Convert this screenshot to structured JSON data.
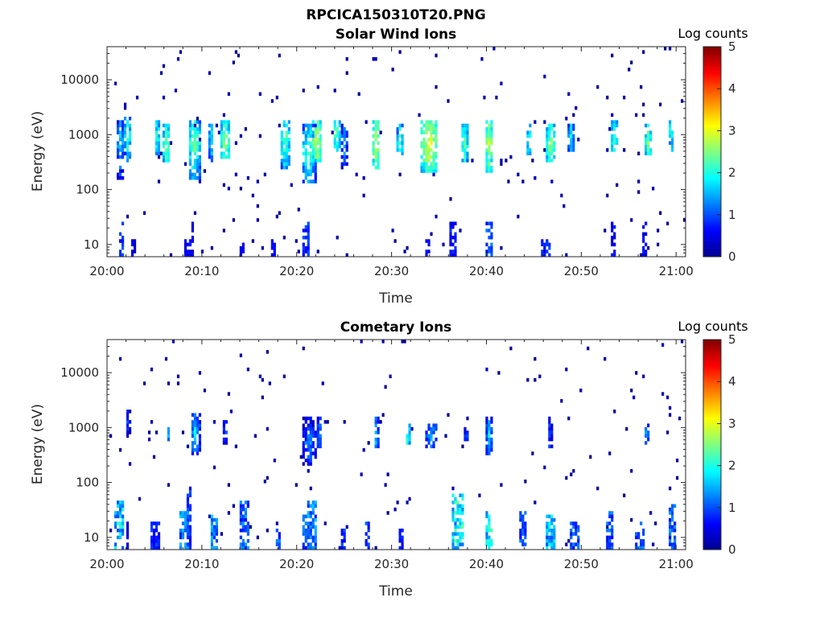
{
  "figure": {
    "title": "RPCICA150310T20.PNG"
  },
  "colormap": {
    "name": "jet",
    "stops": [
      "#00008f",
      "#0000ff",
      "#0080ff",
      "#00ffff",
      "#80ff80",
      "#ffff00",
      "#ff8000",
      "#ff0000",
      "#800000"
    ]
  },
  "chart_data": [
    {
      "type": "heatmap",
      "title": "Solar Wind Ions",
      "xlabel": "Time",
      "ylabel": "Energy (eV)",
      "y_scale": "log",
      "ylim": [
        6,
        40000
      ],
      "xlim_minutes": [
        0,
        61
      ],
      "x_ticks": [
        {
          "minute": 0,
          "label": "20:00"
        },
        {
          "minute": 10,
          "label": "20:10"
        },
        {
          "minute": 20,
          "label": "20:20"
        },
        {
          "minute": 30,
          "label": "20:30"
        },
        {
          "minute": 40,
          "label": "20:40"
        },
        {
          "minute": 50,
          "label": "20:50"
        },
        {
          "minute": 60,
          "label": "21:00"
        }
      ],
      "y_ticks": [
        {
          "value": 10,
          "label": "10"
        },
        {
          "value": 100,
          "label": "100"
        },
        {
          "value": 1000,
          "label": "1000"
        },
        {
          "value": 10000,
          "label": "10000"
        }
      ],
      "colorbar": {
        "label": "Log counts",
        "range": [
          0,
          5
        ],
        "ticks": [
          "0",
          "1",
          "2",
          "3",
          "4",
          "5"
        ]
      },
      "seed": 17,
      "scatter_density": 0.012,
      "bursts": [
        {
          "t": 1.4,
          "e": 700,
          "w": 0.4,
          "lo": 150,
          "hi": 1800,
          "peak": 1.8
        },
        {
          "t": 2.2,
          "e": 1000,
          "w": 0.3,
          "lo": 300,
          "hi": 2000,
          "peak": 2.3
        },
        {
          "t": 5.3,
          "e": 900,
          "w": 0.3,
          "lo": 400,
          "hi": 1800,
          "peak": 2.2
        },
        {
          "t": 6.3,
          "e": 600,
          "w": 0.4,
          "lo": 300,
          "hi": 1500,
          "peak": 2.6
        },
        {
          "t": 9.2,
          "e": 700,
          "w": 0.6,
          "lo": 150,
          "hi": 1800,
          "peak": 2.6
        },
        {
          "t": 11.0,
          "e": 800,
          "w": 0.3,
          "lo": 300,
          "hi": 1500,
          "peak": 2.0
        },
        {
          "t": 12.5,
          "e": 700,
          "w": 0.5,
          "lo": 350,
          "hi": 1800,
          "peak": 2.7
        },
        {
          "t": 18.8,
          "e": 800,
          "w": 0.6,
          "lo": 250,
          "hi": 1800,
          "peak": 2.4
        },
        {
          "t": 21.3,
          "e": 500,
          "w": 0.8,
          "lo": 130,
          "hi": 1600,
          "peak": 2.3
        },
        {
          "t": 22.1,
          "e": 800,
          "w": 0.5,
          "lo": 300,
          "hi": 1800,
          "peak": 3.0
        },
        {
          "t": 24.2,
          "e": 1000,
          "w": 0.4,
          "lo": 500,
          "hi": 1800,
          "peak": 2.5
        },
        {
          "t": 25.0,
          "e": 700,
          "w": 0.3,
          "lo": 250,
          "hi": 1500,
          "peak": 1.6
        },
        {
          "t": 28.4,
          "e": 700,
          "w": 0.4,
          "lo": 250,
          "hi": 1800,
          "peak": 3.0
        },
        {
          "t": 30.9,
          "e": 700,
          "w": 0.3,
          "lo": 400,
          "hi": 1500,
          "peak": 2.3
        },
        {
          "t": 34.0,
          "e": 700,
          "w": 0.9,
          "lo": 200,
          "hi": 1800,
          "peak": 3.1
        },
        {
          "t": 37.7,
          "e": 700,
          "w": 0.4,
          "lo": 300,
          "hi": 1700,
          "peak": 2.4
        },
        {
          "t": 40.3,
          "e": 700,
          "w": 0.4,
          "lo": 200,
          "hi": 1800,
          "peak": 2.9
        },
        {
          "t": 44.5,
          "e": 700,
          "w": 0.3,
          "lo": 400,
          "hi": 1500,
          "peak": 2.2
        },
        {
          "t": 46.8,
          "e": 700,
          "w": 0.5,
          "lo": 300,
          "hi": 1700,
          "peak": 2.7
        },
        {
          "t": 48.9,
          "e": 900,
          "w": 0.3,
          "lo": 500,
          "hi": 1600,
          "peak": 2.0
        },
        {
          "t": 53.5,
          "e": 800,
          "w": 0.4,
          "lo": 500,
          "hi": 1800,
          "peak": 2.2
        },
        {
          "t": 57.1,
          "e": 700,
          "w": 0.3,
          "lo": 400,
          "hi": 1600,
          "peak": 2.6
        },
        {
          "t": 59.5,
          "e": 1200,
          "w": 0.3,
          "lo": 500,
          "hi": 1800,
          "peak": 2.2
        }
      ],
      "low_columns": [
        {
          "t": 1.5,
          "w": 0.3,
          "top": 25,
          "peak": 1.0
        },
        {
          "t": 2.8,
          "w": 0.2,
          "top": 12,
          "peak": 0.6
        },
        {
          "t": 8.5,
          "w": 0.3,
          "top": 12,
          "peak": 0.7
        },
        {
          "t": 9.0,
          "w": 0.2,
          "top": 25,
          "peak": 0.6
        },
        {
          "t": 14.2,
          "w": 0.3,
          "top": 12,
          "peak": 0.6
        },
        {
          "t": 17.5,
          "w": 0.2,
          "top": 12,
          "peak": 0.7
        },
        {
          "t": 21.0,
          "w": 0.4,
          "top": 25,
          "peak": 1.0
        },
        {
          "t": 33.8,
          "w": 0.2,
          "top": 12,
          "peak": 0.7
        },
        {
          "t": 36.5,
          "w": 0.3,
          "top": 25,
          "peak": 0.8
        },
        {
          "t": 40.3,
          "w": 0.4,
          "top": 25,
          "peak": 1.2
        },
        {
          "t": 46.3,
          "w": 0.5,
          "top": 12,
          "peak": 1.0
        },
        {
          "t": 53.3,
          "w": 0.3,
          "top": 25,
          "peak": 0.7
        },
        {
          "t": 56.7,
          "w": 0.2,
          "top": 25,
          "peak": 0.7
        }
      ]
    },
    {
      "type": "heatmap",
      "title": "Cometary Ions",
      "xlabel": "Time",
      "ylabel": "Energy (eV)",
      "y_scale": "log",
      "ylim": [
        6,
        40000
      ],
      "xlim_minutes": [
        0,
        61
      ],
      "x_ticks": [
        {
          "minute": 0,
          "label": "20:00"
        },
        {
          "minute": 10,
          "label": "20:10"
        },
        {
          "minute": 20,
          "label": "20:20"
        },
        {
          "minute": 30,
          "label": "20:30"
        },
        {
          "minute": 40,
          "label": "20:40"
        },
        {
          "minute": 50,
          "label": "20:50"
        },
        {
          "minute": 60,
          "label": "21:00"
        }
      ],
      "y_ticks": [
        {
          "value": 10,
          "label": "10"
        },
        {
          "value": 100,
          "label": "100"
        },
        {
          "value": 1000,
          "label": "1000"
        },
        {
          "value": 10000,
          "label": "10000"
        }
      ],
      "colorbar": {
        "label": "Log counts",
        "range": [
          0,
          5
        ],
        "ticks": [
          "0",
          "1",
          "2",
          "3",
          "4",
          "5"
        ]
      },
      "seed": 91,
      "scatter_density": 0.009,
      "bursts": [
        {
          "t": 2.2,
          "e": 1200,
          "w": 0.3,
          "lo": 700,
          "hi": 2000,
          "peak": 1.0
        },
        {
          "t": 6.5,
          "e": 700,
          "w": 0.2,
          "lo": 500,
          "hi": 1000,
          "peak": 1.5
        },
        {
          "t": 9.3,
          "e": 800,
          "w": 0.5,
          "lo": 300,
          "hi": 1800,
          "peak": 1.8
        },
        {
          "t": 12.5,
          "e": 900,
          "w": 0.3,
          "lo": 500,
          "hi": 1600,
          "peak": 1.2
        },
        {
          "t": 21.3,
          "e": 500,
          "w": 0.8,
          "lo": 200,
          "hi": 1500,
          "peak": 1.4
        },
        {
          "t": 22.4,
          "e": 700,
          "w": 0.3,
          "lo": 400,
          "hi": 1500,
          "peak": 1.6
        },
        {
          "t": 28.4,
          "e": 700,
          "w": 0.3,
          "lo": 400,
          "hi": 1500,
          "peak": 1.7
        },
        {
          "t": 31.7,
          "e": 700,
          "w": 0.3,
          "lo": 500,
          "hi": 1200,
          "peak": 2.2
        },
        {
          "t": 34.2,
          "e": 700,
          "w": 0.7,
          "lo": 400,
          "hi": 1200,
          "peak": 1.6
        },
        {
          "t": 37.9,
          "e": 700,
          "w": 0.2,
          "lo": 500,
          "hi": 1000,
          "peak": 1.3
        },
        {
          "t": 40.3,
          "e": 700,
          "w": 0.3,
          "lo": 300,
          "hi": 1600,
          "peak": 1.8
        },
        {
          "t": 46.7,
          "e": 700,
          "w": 0.3,
          "lo": 400,
          "hi": 1500,
          "peak": 1.2
        },
        {
          "t": 56.9,
          "e": 700,
          "w": 0.3,
          "lo": 500,
          "hi": 1200,
          "peak": 1.5
        }
      ],
      "low_columns": [
        {
          "t": 1.2,
          "w": 0.5,
          "top": 45,
          "peak": 1.9
        },
        {
          "t": 2.2,
          "w": 0.2,
          "top": 20,
          "peak": 0.6
        },
        {
          "t": 5.2,
          "w": 0.5,
          "top": 20,
          "peak": 1.0
        },
        {
          "t": 8.2,
          "w": 0.5,
          "top": 30,
          "peak": 1.5
        },
        {
          "t": 8.7,
          "w": 0.2,
          "top": 90,
          "peak": 1.0
        },
        {
          "t": 11.4,
          "w": 0.4,
          "top": 25,
          "peak": 1.5
        },
        {
          "t": 14.6,
          "w": 0.5,
          "top": 45,
          "peak": 1.3
        },
        {
          "t": 18.1,
          "w": 0.3,
          "top": 15,
          "peak": 1.2
        },
        {
          "t": 20.9,
          "w": 0.4,
          "top": 25,
          "peak": 1.2
        },
        {
          "t": 21.6,
          "w": 0.5,
          "top": 45,
          "peak": 1.5
        },
        {
          "t": 24.9,
          "w": 0.3,
          "top": 15,
          "peak": 1.0
        },
        {
          "t": 27.5,
          "w": 0.3,
          "top": 20,
          "peak": 1.1
        },
        {
          "t": 31.0,
          "w": 0.2,
          "top": 15,
          "peak": 0.8
        },
        {
          "t": 37.0,
          "w": 0.6,
          "top": 60,
          "peak": 2.2
        },
        {
          "t": 40.3,
          "w": 0.4,
          "top": 30,
          "peak": 2.1
        },
        {
          "t": 43.8,
          "w": 0.4,
          "top": 30,
          "peak": 1.2
        },
        {
          "t": 46.7,
          "w": 0.5,
          "top": 25,
          "peak": 1.8
        },
        {
          "t": 49.3,
          "w": 0.4,
          "top": 20,
          "peak": 1.2
        },
        {
          "t": 53.0,
          "w": 0.4,
          "top": 30,
          "peak": 1.2
        },
        {
          "t": 56.2,
          "w": 0.5,
          "top": 20,
          "peak": 1.3
        },
        {
          "t": 59.5,
          "w": 0.4,
          "top": 40,
          "peak": 1.3
        }
      ]
    }
  ]
}
